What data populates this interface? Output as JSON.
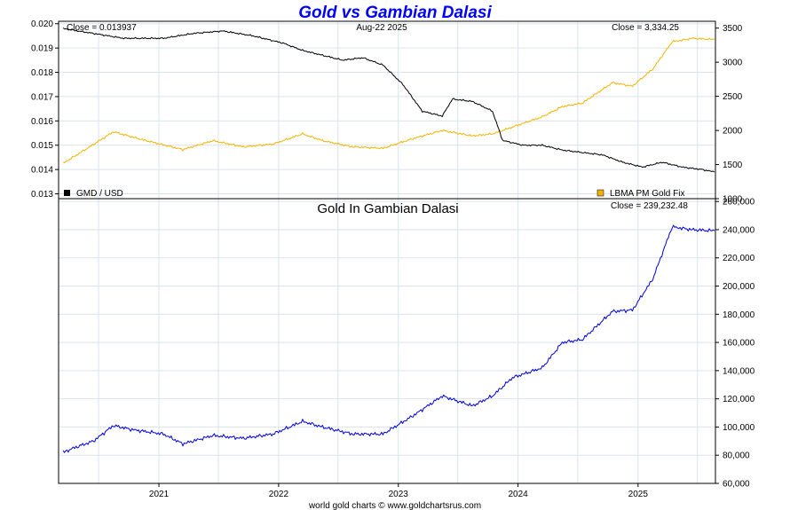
{
  "colors": {
    "title": "#0000ff",
    "gmd": "#000000",
    "gold": "#f0b400",
    "gold_gmd": "#0000dd",
    "grid": "#d9e4ea"
  },
  "chart_data": [
    {
      "type": "line",
      "title": "Gold vs Gambian Dalasi",
      "date_label": "Aug-22  2025",
      "left_axis": {
        "ylim": [
          0.0128,
          0.0201
        ],
        "ticks": [
          "0.020",
          "0.019",
          "0.018",
          "0.017",
          "0.016",
          "0.015",
          "0.014",
          "0.013"
        ],
        "tick_values": [
          0.02,
          0.019,
          0.018,
          0.017,
          0.016,
          0.015,
          0.014,
          0.013
        ]
      },
      "right_axis": {
        "ylim": [
          1000,
          3600
        ],
        "ticks": [
          "3500",
          "3000",
          "2500",
          "2000",
          "1500",
          "1000"
        ],
        "tick_values": [
          3500,
          3000,
          2500,
          2000,
          1500,
          1000
        ]
      },
      "grid": true,
      "series": [
        {
          "name": "GMD / USD",
          "axis": "left",
          "close_label": "Close = 0.013937",
          "points": [
            [
              "2020-03",
              0.0198
            ],
            [
              "2020-06",
              0.0196
            ],
            [
              "2020-09",
              0.0194
            ],
            [
              "2021-01",
              0.0194
            ],
            [
              "2021-04",
              0.0196
            ],
            [
              "2021-07",
              0.0197
            ],
            [
              "2021-10",
              0.0195
            ],
            [
              "2022-01",
              0.0192
            ],
            [
              "2022-03",
              0.0189
            ],
            [
              "2022-05",
              0.0187
            ],
            [
              "2022-07",
              0.0185
            ],
            [
              "2022-09",
              0.0186
            ],
            [
              "2022-11",
              0.0183
            ],
            [
              "2023-01",
              0.0175
            ],
            [
              "2023-03",
              0.0164
            ],
            [
              "2023-05",
              0.0162
            ],
            [
              "2023-06",
              0.0169
            ],
            [
              "2023-08",
              0.0168
            ],
            [
              "2023-10",
              0.0164
            ],
            [
              "2023-11",
              0.0152
            ],
            [
              "2024-01",
              0.015
            ],
            [
              "2024-03",
              0.015
            ],
            [
              "2024-05",
              0.0148
            ],
            [
              "2024-07",
              0.0147
            ],
            [
              "2024-09",
              0.0146
            ],
            [
              "2024-11",
              0.0143
            ],
            [
              "2025-01",
              0.0141
            ],
            [
              "2025-03",
              0.0143
            ],
            [
              "2025-05",
              0.0141
            ],
            [
              "2025-07",
              0.014
            ],
            [
              "2025-08-22",
              0.0139
            ]
          ]
        },
        {
          "name": "LBMA PM Gold Fix",
          "axis": "right",
          "close_label": "Close = 3,334.25",
          "points": [
            [
              "2020-03",
              1520
            ],
            [
              "2020-05",
              1700
            ],
            [
              "2020-08",
              1980
            ],
            [
              "2020-11",
              1860
            ],
            [
              "2021-03",
              1720
            ],
            [
              "2021-06",
              1850
            ],
            [
              "2021-09",
              1760
            ],
            [
              "2021-12",
              1800
            ],
            [
              "2022-03",
              1950
            ],
            [
              "2022-05",
              1850
            ],
            [
              "2022-08",
              1760
            ],
            [
              "2022-11",
              1740
            ],
            [
              "2023-02",
              1880
            ],
            [
              "2023-05",
              2000
            ],
            [
              "2023-08",
              1920
            ],
            [
              "2023-10",
              1950
            ],
            [
              "2023-12",
              2050
            ],
            [
              "2024-03",
              2200
            ],
            [
              "2024-05",
              2350
            ],
            [
              "2024-07",
              2400
            ],
            [
              "2024-10",
              2700
            ],
            [
              "2024-12",
              2650
            ],
            [
              "2025-02",
              2900
            ],
            [
              "2025-04",
              3300
            ],
            [
              "2025-06",
              3350
            ],
            [
              "2025-08-22",
              3334
            ]
          ]
        }
      ]
    },
    {
      "type": "line",
      "title": "Gold In Gambian Dalasi",
      "close_label": "Close = 239,232.48",
      "ylim": [
        60000,
        262000
      ],
      "yticks": [
        "260,000",
        "240,000",
        "220,000",
        "200,000",
        "180,000",
        "160,000",
        "140,000",
        "120,000",
        "100,000",
        "80,000",
        "60,000"
      ],
      "ytick_values": [
        260000,
        240000,
        220000,
        200000,
        180000,
        160000,
        140000,
        120000,
        100000,
        80000,
        60000
      ],
      "xticks": [
        "2021",
        "2022",
        "2023",
        "2024",
        "2025"
      ],
      "grid": true,
      "series": [
        {
          "name": "Gold In Gambian Dalasi",
          "points": [
            [
              "2020-03",
              82000
            ],
            [
              "2020-04",
              85000
            ],
            [
              "2020-06",
              90000
            ],
            [
              "2020-08",
              101000
            ],
            [
              "2020-10",
              98000
            ],
            [
              "2021-01",
              95000
            ],
            [
              "2021-03",
              88000
            ],
            [
              "2021-06",
              94000
            ],
            [
              "2021-09",
              92000
            ],
            [
              "2021-12",
              95000
            ],
            [
              "2022-03",
              104000
            ],
            [
              "2022-05",
              100000
            ],
            [
              "2022-08",
              95000
            ],
            [
              "2022-11",
              95000
            ],
            [
              "2023-02",
              108000
            ],
            [
              "2023-05",
              122000
            ],
            [
              "2023-08",
              115000
            ],
            [
              "2023-10",
              122000
            ],
            [
              "2023-12",
              135000
            ],
            [
              "2024-03",
              142000
            ],
            [
              "2024-05",
              160000
            ],
            [
              "2024-07",
              162000
            ],
            [
              "2024-10",
              182000
            ],
            [
              "2024-12",
              183000
            ],
            [
              "2025-02",
              205000
            ],
            [
              "2025-04",
              242000
            ],
            [
              "2025-06",
              240000
            ],
            [
              "2025-08-22",
              239232
            ]
          ]
        }
      ]
    }
  ],
  "footer": "world gold charts © www.goldchartsrus.com"
}
